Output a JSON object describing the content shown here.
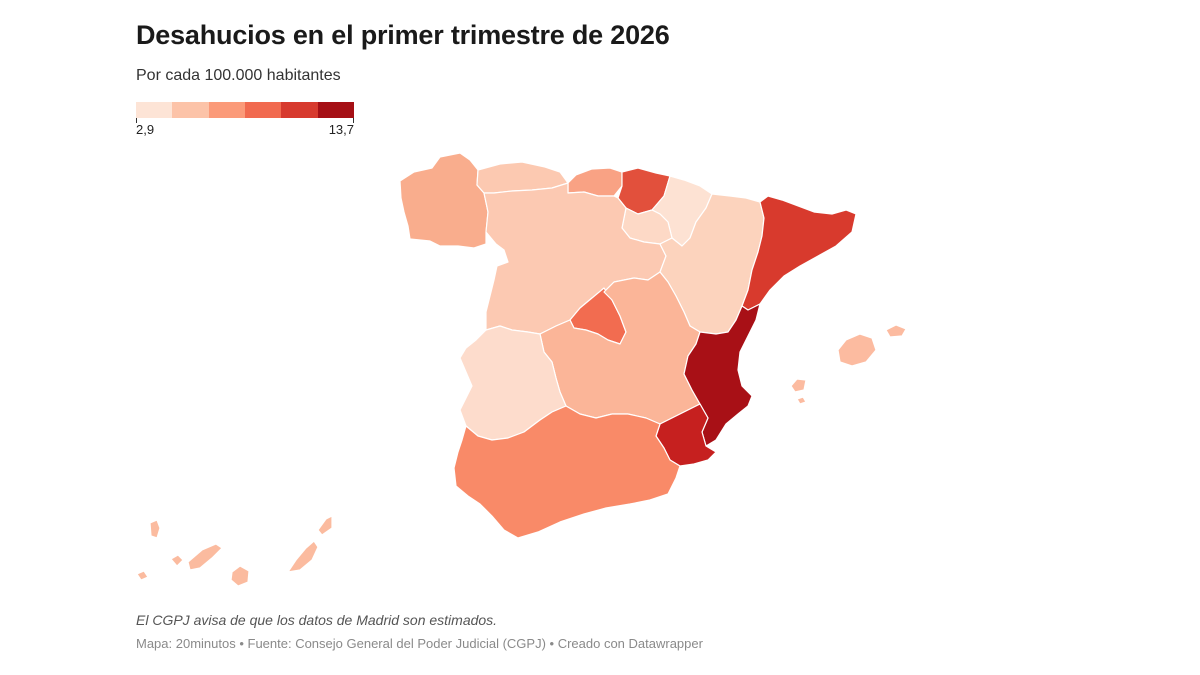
{
  "header": {
    "title": "Desahucios en el primer trimestre de 2026",
    "subtitle": "Por cada 100.000 habitantes"
  },
  "legend": {
    "min_label": "2,9",
    "max_label": "13,7",
    "min_value": 2.9,
    "max_value": 13.7,
    "colors": [
      "#fde4d6",
      "#fcc3a8",
      "#fb9a79",
      "#f16a4f",
      "#d73a2e",
      "#a50f15"
    ]
  },
  "map": {
    "regions": [
      {
        "name": "Galicia",
        "color": "#f9ad8d"
      },
      {
        "name": "Asturias",
        "color": "#fcc9b1"
      },
      {
        "name": "Cantabria",
        "color": "#f9a284"
      },
      {
        "name": "País Vasco",
        "color": "#e2503c"
      },
      {
        "name": "Navarra",
        "color": "#fde2d3"
      },
      {
        "name": "La Rioja",
        "color": "#fdd9c6"
      },
      {
        "name": "Castilla y León",
        "color": "#fcc9b2"
      },
      {
        "name": "Aragón",
        "color": "#fcd3bd"
      },
      {
        "name": "Cataluña",
        "color": "#d83a2d"
      },
      {
        "name": "Madrid",
        "color": "#f26c50"
      },
      {
        "name": "Castilla-La Mancha",
        "color": "#fbb598"
      },
      {
        "name": "Extremadura",
        "color": "#fddccc"
      },
      {
        "name": "Comunidad Valenciana",
        "color": "#a81016"
      },
      {
        "name": "Región de Murcia",
        "color": "#c6201f"
      },
      {
        "name": "Andalucía",
        "color": "#f98a68"
      },
      {
        "name": "Islas Baleares",
        "color": "#fcbba0"
      },
      {
        "name": "Canarias",
        "color": "#fbbb9f"
      }
    ]
  },
  "footer": {
    "note": "El CGPJ avisa de que los datos de Madrid son estimados.",
    "credits": "Mapa: 20minutos • Fuente: Consejo General del Poder Judicial (CGPJ) • Creado con Datawrapper"
  }
}
